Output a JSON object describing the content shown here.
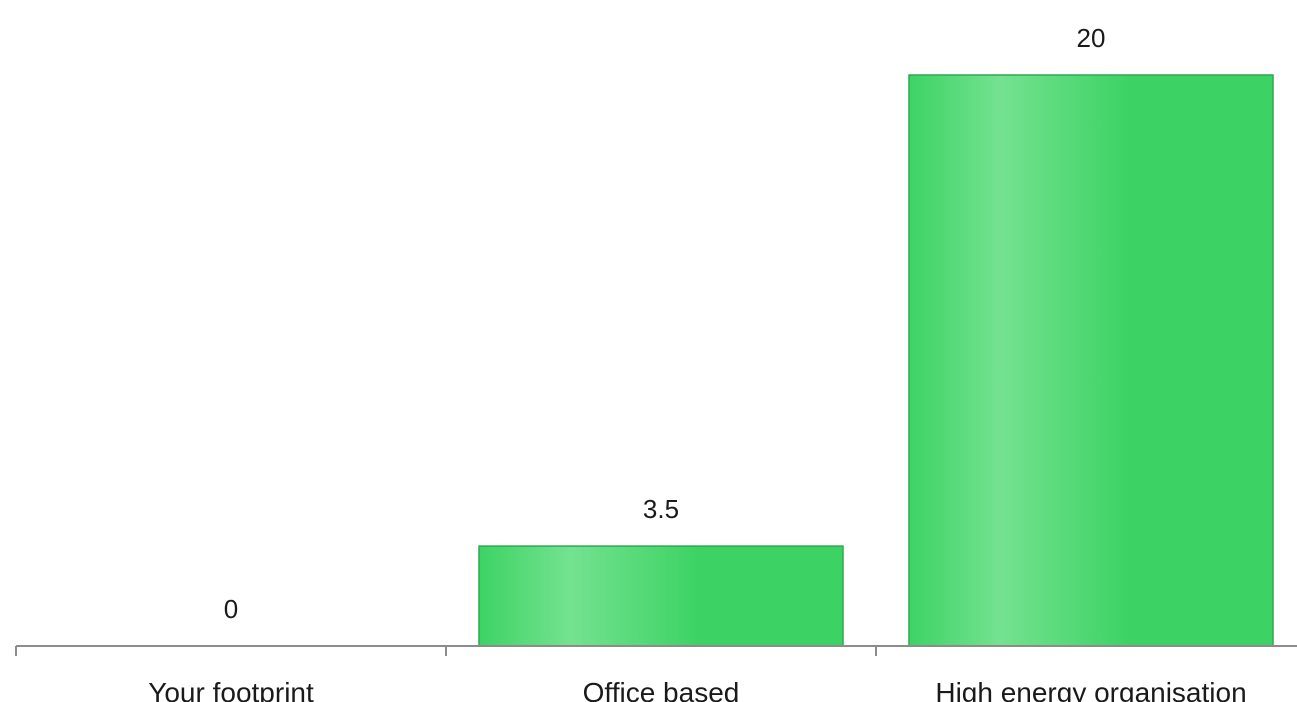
{
  "chart_data": {
    "type": "bar",
    "categories": [
      "Your footprint",
      "Office based",
      "High energy organisation"
    ],
    "values": [
      0,
      3.5,
      20
    ],
    "value_labels": [
      "0",
      "3.5",
      "20"
    ],
    "title": "",
    "xlabel": "",
    "ylabel": "",
    "ylim": [
      0,
      20
    ],
    "grid": false,
    "legend": "none",
    "colors": {
      "bar_fill": "#3dd364",
      "bar_highlight": "#74e290",
      "bar_stroke": "#2ea84f",
      "axis": "#8c8c8c"
    }
  }
}
